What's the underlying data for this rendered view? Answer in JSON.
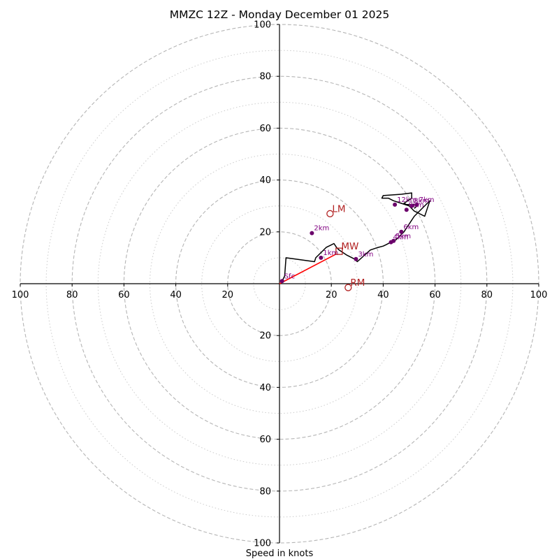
{
  "title": "MMZC 12Z - Monday December 01 2025",
  "colors": {
    "hodograph": "#000000",
    "height_marker": "#6b006b",
    "height_label": "#800080",
    "motion_marker": "#b22222",
    "shear_vector": "#ff0000",
    "ring": "#b5b5b5",
    "axis": "#000000"
  },
  "chart_data": {
    "type": "line",
    "title": "MMZC 12Z - Monday December 01 2025",
    "xlabel": "Speed in knots",
    "ylabel": "",
    "xlim": [
      -100,
      100
    ],
    "ylim": [
      -100,
      100
    ],
    "major_rings": [
      20,
      40,
      60,
      80,
      100
    ],
    "minor_rings": [
      10,
      30,
      50,
      70,
      90
    ],
    "x_tick_labels": [
      "100",
      "80",
      "60",
      "40",
      "20",
      "20",
      "40",
      "60",
      "80",
      "100"
    ],
    "x_tick_values": [
      -100,
      -80,
      -60,
      -40,
      -20,
      20,
      40,
      60,
      80,
      100
    ],
    "y_tick_labels": [
      "100",
      "80",
      "60",
      "40",
      "20",
      "20",
      "40",
      "60",
      "80",
      "100"
    ],
    "y_tick_values": [
      100,
      80,
      60,
      40,
      20,
      -20,
      -40,
      -60,
      -80,
      -100
    ],
    "grid": true,
    "series": [
      {
        "values_u": [
          1,
          2,
          2.5,
          13.5,
          14,
          16,
          18,
          20,
          21,
          22,
          23,
          26,
          29,
          30,
          35,
          38,
          40,
          41,
          43,
          45,
          48,
          50,
          52,
          55,
          58,
          56,
          52,
          50,
          47,
          44,
          42,
          39.5,
          40,
          47,
          51,
          51,
          48,
          49,
          52,
          53,
          52
        ],
        "values_v": [
          1,
          3,
          10,
          8.5,
          10,
          12,
          14,
          15,
          15.5,
          14,
          13,
          11,
          9.5,
          8.5,
          13,
          14,
          14.5,
          15,
          16,
          17,
          20,
          23,
          26,
          29,
          32,
          26,
          28,
          30,
          31,
          32,
          33,
          33,
          34,
          34.5,
          35,
          33,
          31,
          30.5,
          30.5,
          30,
          29
        ]
      }
    ],
    "height_markers": [
      {
        "label": "Sfc",
        "u": 1,
        "v": 1
      },
      {
        "label": "1km",
        "u": 16,
        "v": 10
      },
      {
        "label": "2km",
        "u": 12.5,
        "v": 19.5
      },
      {
        "label": "3km",
        "u": 29.5,
        "v": 9.5
      },
      {
        "label": "4km",
        "u": 43,
        "v": 16
      },
      {
        "label": "5km",
        "u": 44,
        "v": 16.5
      },
      {
        "label": "6km",
        "u": 47,
        "v": 20
      },
      {
        "label": "7km",
        "u": 53,
        "v": 30.5
      },
      {
        "label": "8km",
        "u": 51,
        "v": 30
      },
      {
        "label": "9km",
        "u": 49,
        "v": 28.5
      },
      {
        "label": "12km",
        "u": 44.5,
        "v": 30.5
      }
    ],
    "storm_motion": [
      {
        "label": "LM",
        "u": 19.5,
        "v": 27,
        "marker": "circle"
      },
      {
        "label": "RM",
        "u": 26.5,
        "v": -1.5,
        "marker": "circle"
      },
      {
        "label": "MW",
        "u": 23,
        "v": 12.5,
        "marker": "square"
      }
    ],
    "shear_vector": {
      "from": [
        0,
        0
      ],
      "to": [
        22,
        11.5
      ]
    }
  }
}
